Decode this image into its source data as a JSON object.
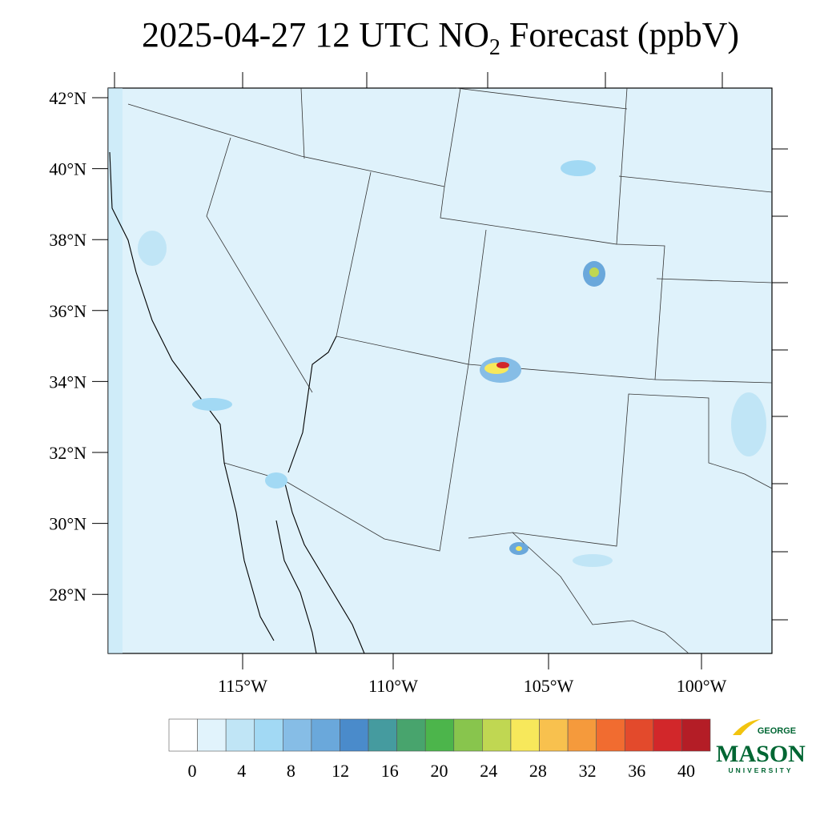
{
  "header": {
    "title": {
      "before": "2025-04-27 12 UTC NO",
      "subscript": "2",
      "after": " Forecast (ppbV)"
    }
  },
  "map": {
    "lat_labels": [
      "42°N",
      "40°N",
      "38°N",
      "36°N",
      "34°N",
      "32°N",
      "30°N",
      "28°N"
    ],
    "lon_labels": [
      "115°W",
      "110°W",
      "105°W",
      "100°W"
    ]
  },
  "colorbar": {
    "colors": [
      "#ffffff",
      "#e1f3fc",
      "#c0e5f6",
      "#a2d9f4",
      "#86bde6",
      "#6aa8db",
      "#4a8bcb",
      "#459b9f",
      "#48a46d",
      "#4cb54b",
      "#88c54d",
      "#c0d752",
      "#f7e85b",
      "#f8c14e",
      "#f59a3c",
      "#f16c30",
      "#e34a2c",
      "#d2272a",
      "#b41d26"
    ],
    "labels": [
      "0",
      "4",
      "8",
      "12",
      "16",
      "20",
      "24",
      "28",
      "32",
      "36",
      "40"
    ]
  },
  "logo": {
    "top": "GEORGE",
    "main": "MASON",
    "bottom": "UNIVERSITY"
  }
}
